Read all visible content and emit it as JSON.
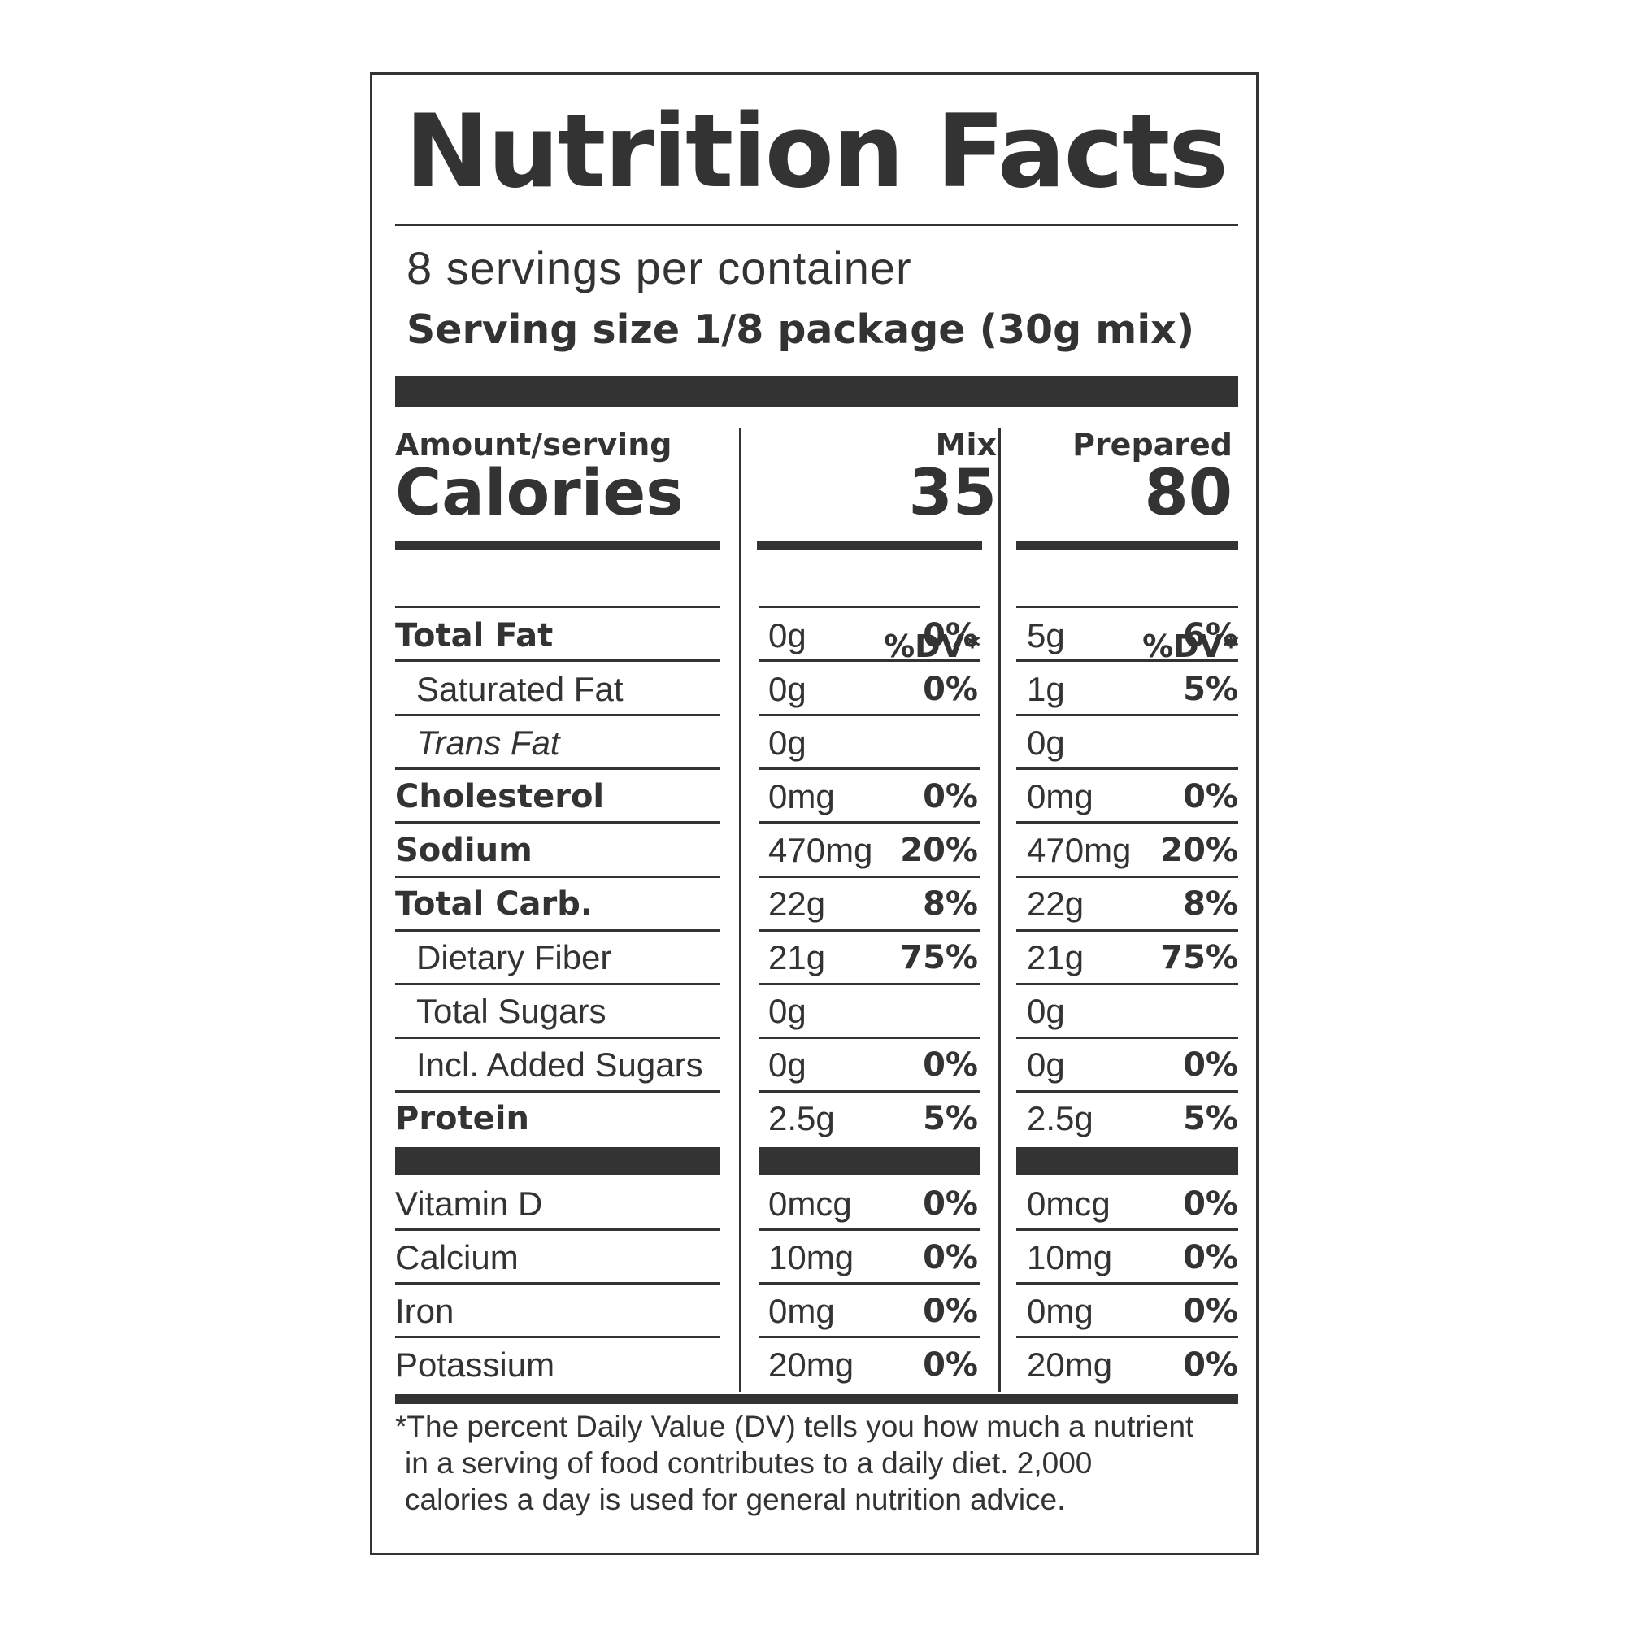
{
  "title": "Nutrition Facts",
  "servings_per_container": "8 servings per container",
  "serving_size": "Serving size 1/8 package (30g mix)",
  "header": {
    "amount_per_serving": "Amount/serving",
    "calories_label": "Calories",
    "mix_label": "Mix",
    "prepared_label": "Prepared",
    "mix_calories": "35",
    "prepared_calories": "80",
    "dv_label": "%DV*"
  },
  "nutrients": [
    {
      "name": "Total Fat",
      "mix_amount": "0g",
      "mix_dv": "0%",
      "prep_amount": "5g",
      "prep_dv": "6%"
    },
    {
      "name": "Saturated Fat",
      "mix_amount": "0g",
      "mix_dv": "0%",
      "prep_amount": "1g",
      "prep_dv": "5%"
    },
    {
      "name": "Trans Fat",
      "mix_amount": "0g",
      "mix_dv": "",
      "prep_amount": "0g",
      "prep_dv": ""
    },
    {
      "name": "Cholesterol",
      "mix_amount": "0mg",
      "mix_dv": "0%",
      "prep_amount": "0mg",
      "prep_dv": "0%"
    },
    {
      "name": "Sodium",
      "mix_amount": "470mg",
      "mix_dv": "20%",
      "prep_amount": "470mg",
      "prep_dv": "20%"
    },
    {
      "name": "Total Carb.",
      "mix_amount": "22g",
      "mix_dv": "8%",
      "prep_amount": "22g",
      "prep_dv": "8%"
    },
    {
      "name": "Dietary Fiber",
      "mix_amount": "21g",
      "mix_dv": "75%",
      "prep_amount": "21g",
      "prep_dv": "75%"
    },
    {
      "name": "Total Sugars",
      "mix_amount": "0g",
      "mix_dv": "",
      "prep_amount": "0g",
      "prep_dv": ""
    },
    {
      "name": "Incl. Added Sugars",
      "mix_amount": "0g",
      "mix_dv": "0%",
      "prep_amount": "0g",
      "prep_dv": "0%"
    },
    {
      "name": "Protein",
      "mix_amount": "2.5g",
      "mix_dv": "5%",
      "prep_amount": "2.5g",
      "prep_dv": "5%"
    }
  ],
  "vitamins": [
    {
      "name": "Vitamin D",
      "mix_amount": "0mcg",
      "mix_dv": "0%",
      "prep_amount": "0mcg",
      "prep_dv": "0%"
    },
    {
      "name": "Calcium",
      "mix_amount": "10mg",
      "mix_dv": "0%",
      "prep_amount": "10mg",
      "prep_dv": "0%"
    },
    {
      "name": "Iron",
      "mix_amount": "0mg",
      "mix_dv": "0%",
      "prep_amount": "0mg",
      "prep_dv": "0%"
    },
    {
      "name": "Potassium",
      "mix_amount": "20mg",
      "mix_dv": "0%",
      "prep_amount": "20mg",
      "prep_dv": "0%"
    }
  ],
  "footnote": [
    "*The percent Daily Value (DV) tells you how much a nutrient",
    "in a serving of food contributes to a daily diet. 2,000",
    "calories a day is used for general nutrition advice."
  ],
  "colors": {
    "ink": "#333333",
    "background": "#ffffff"
  }
}
